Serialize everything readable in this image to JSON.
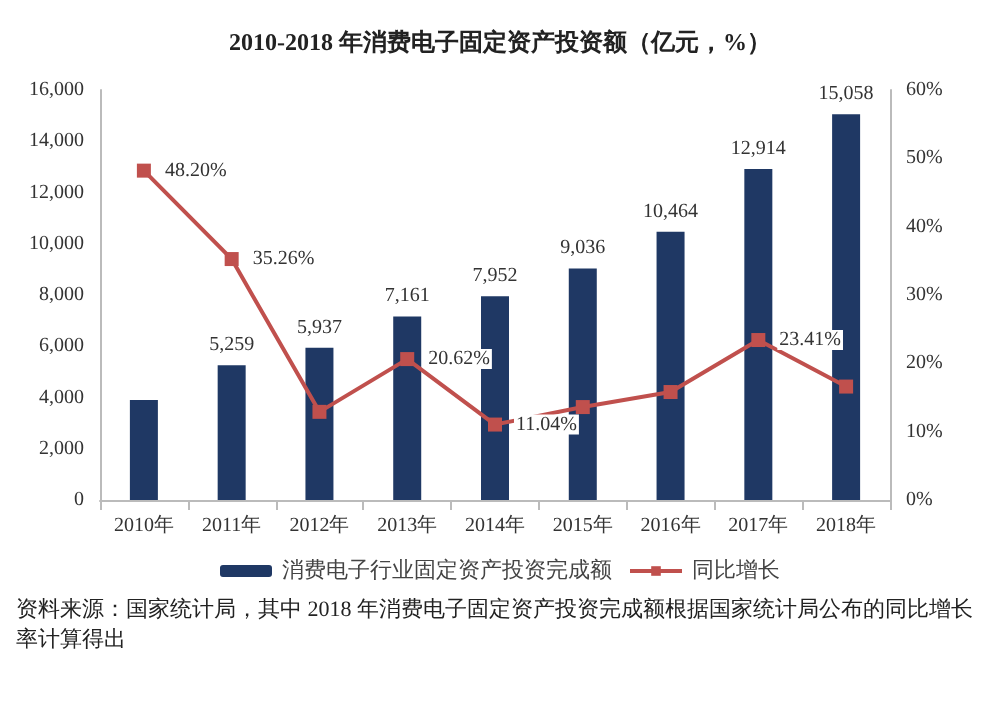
{
  "chart_data": {
    "type": "bar",
    "title": "2010-2018 年消费电子固定资产投资额（亿元，%）",
    "categories": [
      "2010年",
      "2011年",
      "2012年",
      "2013年",
      "2014年",
      "2015年",
      "2016年",
      "2017年",
      "2018年"
    ],
    "series": [
      {
        "name": "消费电子行业固定资产投资完成额",
        "color": "#1f3864",
        "values": [
          3900,
          5259,
          5937,
          7161,
          7952,
          9036,
          10464,
          12914,
          15058
        ],
        "value_labels": [
          null,
          "5,259",
          "5,937",
          "7,161",
          "7,952",
          "9,036",
          "10,464",
          "12,914",
          "15,058"
        ]
      },
      {
        "name": "同比增长",
        "type": "line",
        "axis": "y2",
        "color": "#c0504d",
        "values": [
          48.2,
          35.26,
          12.9,
          20.62,
          11.04,
          13.6,
          15.8,
          23.41,
          16.6
        ],
        "value_labels": [
          "48.20%",
          "35.26%",
          null,
          "20.62%",
          "11.04%",
          null,
          null,
          "23.41%",
          null
        ]
      }
    ],
    "ylim": [
      0,
      16000
    ],
    "yticks": [
      0,
      {
        "value": 2000,
        "label": "2,000"
      },
      {
        "value": 4000,
        "label": "4,000"
      },
      {
        "value": 6000,
        "label": "6,000"
      },
      {
        "value": 8000,
        "label": "8,000"
      },
      {
        "value": 10000,
        "label": "10,000"
      },
      {
        "value": 12000,
        "label": "12,000"
      },
      {
        "value": 14000,
        "label": "14,000"
      },
      {
        "value": 16000,
        "label": "16,000"
      }
    ],
    "y2lim": [
      0,
      60
    ],
    "y2ticks": [
      {
        "value": 0,
        "label": "0%"
      },
      {
        "value": 10,
        "label": "10%"
      },
      {
        "value": 20,
        "label": "20%"
      },
      {
        "value": 30,
        "label": "30%"
      },
      {
        "value": 40,
        "label": "40%"
      },
      {
        "value": 50,
        "label": "50%"
      },
      {
        "value": 60,
        "label": "60%"
      }
    ],
    "marker": "square",
    "grid": false,
    "legend": "bottom",
    "annotations": [
      "资料来源：国家统计局，其中 2018 年消费电子固定资产投资完成额根据国家统计局公布的同比增长率计算得出"
    ]
  }
}
